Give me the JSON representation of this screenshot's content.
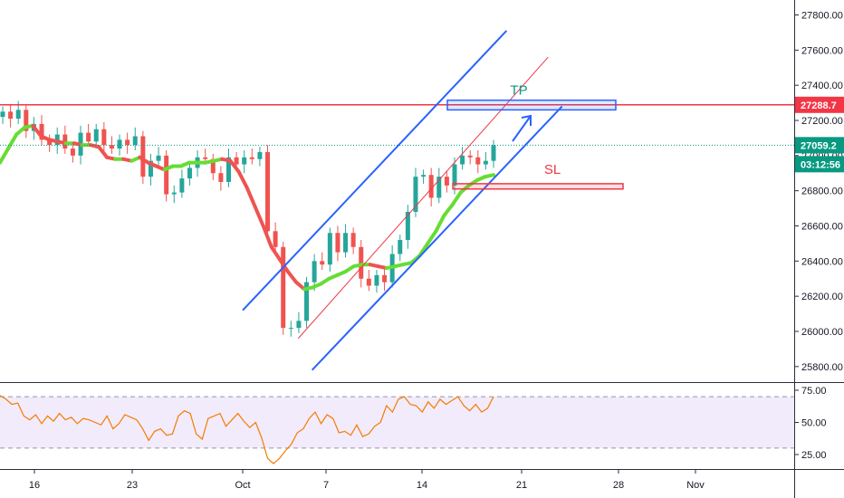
{
  "chart_data": [
    {
      "type": "candlestick",
      "title": "",
      "ylim": [
        25700,
        27880
      ],
      "price_ticks": [
        25800,
        26000,
        26200,
        26400,
        26600,
        26800,
        27000,
        27200,
        27400,
        27600,
        27800
      ],
      "x_ticks": [
        "16",
        "23",
        "Oct",
        "7",
        "14",
        "21",
        "28",
        "Nov"
      ],
      "grid": false,
      "colors": {
        "up": "#26a69a",
        "down": "#ef5350",
        "ma_up": "#66dd33",
        "ma_down": "#ef5350",
        "channel": "#2962ff",
        "resistance": "#f23645",
        "price_line": "#089981"
      },
      "last_price_label": "27059.2",
      "countdown_label": "03:12:56",
      "resistance_label": "27288.7",
      "series": [
        {
          "name": "",
          "type": "close",
          "values": [
            27250,
            27210,
            27260,
            27140,
            27180,
            27090,
            27060,
            27120,
            27040,
            27000,
            27130,
            27080,
            27150,
            27060,
            27040,
            27090,
            27060,
            27110,
            26880,
            26970,
            27000,
            26780,
            26790,
            26870,
            26930,
            26990,
            26980,
            26900,
            26850,
            26990,
            26950,
            26990,
            26980,
            27020,
            26570,
            26480,
            26020,
            26020,
            26060,
            26280,
            26400,
            26380,
            26560,
            26450,
            26560,
            26480,
            26300,
            26260,
            26320,
            26280,
            26440,
            26520,
            26680,
            26880,
            26890,
            26760,
            26880,
            26830,
            26950,
            27000,
            26990,
            26950,
            26970,
            27059.2
          ]
        },
        {
          "name": "",
          "type": "moving_average",
          "values": [
            26960,
            27040,
            27120,
            27160,
            27170,
            27110,
            27090,
            27080,
            27070,
            27070,
            27060,
            27060,
            27050,
            26990,
            26980,
            26980,
            26970,
            26990,
            26960,
            26940,
            26920,
            26940,
            26940,
            26960,
            26960,
            26960,
            26970,
            26980,
            26970,
            26910,
            26820,
            26710,
            26600,
            26480,
            26410,
            26340,
            26280,
            26240,
            26250,
            26270,
            26300,
            26320,
            26340,
            26370,
            26380,
            26380,
            26370,
            26360,
            26370,
            26380,
            26390,
            26430,
            26500,
            26570,
            26660,
            26720,
            26790,
            26830,
            26860,
            26880,
            26890
          ]
        }
      ],
      "annotations": [
        {
          "type": "horizontal_line",
          "price": 27288.7
        },
        {
          "type": "parallel_channel",
          "upper": [
            [
              "Oct 1",
              26120
            ],
            [
              "Oct 20",
              27710
            ]
          ],
          "lower": [
            [
              "Oct 6",
              25780
            ],
            [
              "Oct 24",
              27280
            ]
          ],
          "mid": [
            [
              "Oct 5",
              25960
            ],
            [
              "Oct 23",
              27560
            ]
          ]
        },
        {
          "type": "box",
          "label": "TP",
          "y_top": 27315,
          "y_bottom": 27260,
          "label_color": "#089981"
        },
        {
          "type": "box",
          "label": "SL",
          "y_top": 26840,
          "y_bottom": 26810,
          "label_color": "#f23645"
        },
        {
          "type": "arrow",
          "direction": "up-right"
        }
      ]
    },
    {
      "type": "line",
      "title": "",
      "ylim": [
        12,
        79
      ],
      "y_ticks": [
        25.0,
        50.0,
        75.0
      ],
      "y_tick_labels": [
        "25.00",
        "50.00",
        "75.00"
      ],
      "band": [
        30,
        70
      ],
      "series": [
        {
          "name": "",
          "values": [
            71,
            68,
            64,
            65,
            55,
            52,
            56,
            49,
            55,
            51,
            57,
            52,
            54,
            49,
            53,
            52,
            50,
            48,
            55,
            45,
            49,
            56,
            54,
            52,
            45,
            36,
            43,
            45,
            40,
            41,
            55,
            59,
            57,
            41,
            37,
            53,
            55,
            57,
            47,
            52,
            57,
            51,
            46,
            50,
            38,
            22,
            18,
            22,
            28,
            33,
            42,
            45,
            53,
            58,
            49,
            56,
            53,
            42,
            43,
            40,
            48,
            39,
            41,
            47,
            50,
            63,
            58,
            68,
            70,
            64,
            63,
            58,
            66,
            61,
            68,
            64,
            67,
            70,
            63,
            59,
            64,
            58,
            61,
            70
          ]
        }
      ]
    }
  ]
}
